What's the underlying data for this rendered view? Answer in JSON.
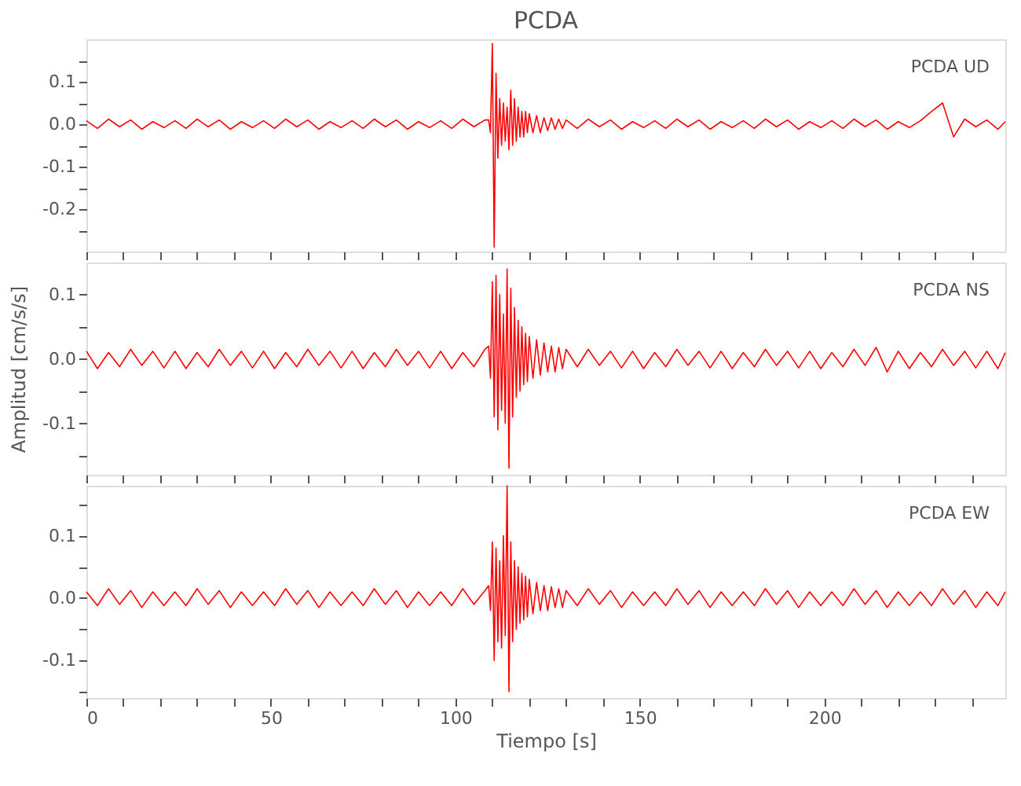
{
  "chart_data": [
    {
      "type": "line",
      "title": "PCDA",
      "annotations": [
        "PCDA   UD"
      ],
      "tick_labels": "y",
      "grid": false,
      "xlim": [
        0,
        249
      ],
      "xticks": [
        0,
        {
          "value": 10,
          "label": null
        },
        {
          "value": 20,
          "label": null
        },
        {
          "value": 30,
          "label": null
        },
        {
          "value": 40,
          "label": null
        },
        50,
        {
          "value": 60,
          "label": null
        },
        {
          "value": 70,
          "label": null
        },
        {
          "value": 80,
          "label": null
        },
        {
          "value": 90,
          "label": null
        },
        100,
        {
          "value": 110,
          "label": null
        },
        {
          "value": 120,
          "label": null
        },
        {
          "value": 130,
          "label": null
        },
        {
          "value": 140,
          "label": null
        },
        150,
        {
          "value": 160,
          "label": null
        },
        {
          "value": 170,
          "label": null
        },
        {
          "value": 180,
          "label": null
        },
        {
          "value": 190,
          "label": null
        },
        200,
        {
          "value": 210,
          "label": null
        },
        {
          "value": 220,
          "label": null
        },
        {
          "value": 230,
          "label": null
        },
        {
          "value": 240,
          "label": null
        }
      ],
      "ylim": [
        -0.3,
        0.2
      ],
      "yticks": [
        {
          "value": -0.25,
          "label": null
        },
        -0.2,
        {
          "value": -0.15,
          "label": null
        },
        -0.1,
        {
          "value": -0.05,
          "label": null
        },
        {
          "value": 0,
          "label": "0.0"
        },
        {
          "value": 0.05,
          "label": null
        },
        0.1,
        {
          "value": 0.15,
          "label": null
        }
      ],
      "x": [
        0,
        3,
        6,
        9,
        12,
        15,
        18,
        21,
        24,
        27,
        30,
        33,
        36,
        39,
        42,
        45,
        48,
        51,
        54,
        57,
        60,
        63,
        66,
        69,
        72,
        75,
        78,
        81,
        84,
        87,
        90,
        93,
        96,
        99,
        102,
        105,
        108,
        109,
        109.5,
        110,
        110.5,
        111,
        111.5,
        112,
        112.5,
        113,
        113.5,
        114,
        114.5,
        115,
        115.5,
        116,
        116.5,
        117,
        117.5,
        118,
        118.5,
        119,
        119.5,
        120,
        121,
        122,
        123,
        124,
        125,
        126,
        127,
        128,
        129,
        130,
        133,
        136,
        139,
        142,
        145,
        148,
        151,
        154,
        157,
        160,
        163,
        166,
        169,
        172,
        175,
        178,
        181,
        184,
        187,
        190,
        193,
        196,
        199,
        202,
        205,
        208,
        211,
        214,
        217,
        220,
        223,
        226,
        229,
        232,
        235,
        238,
        241,
        244,
        247,
        249
      ],
      "series": [
        {
          "color": "#ff0000",
          "values": [
            0.008,
            -0.01,
            0.012,
            -0.006,
            0.01,
            -0.012,
            0.006,
            -0.008,
            0.008,
            -0.01,
            0.012,
            -0.006,
            0.01,
            -0.012,
            0.006,
            -0.008,
            0.008,
            -0.01,
            0.012,
            -0.006,
            0.01,
            -0.012,
            0.006,
            -0.008,
            0.008,
            -0.01,
            0.012,
            -0.006,
            0.01,
            -0.012,
            0.006,
            -0.008,
            0.008,
            -0.01,
            0.012,
            -0.006,
            0.01,
            0.01,
            -0.02,
            0.19,
            -0.29,
            0.12,
            -0.08,
            0.06,
            -0.05,
            0.05,
            -0.04,
            0.04,
            -0.06,
            0.08,
            -0.05,
            0.06,
            -0.04,
            0.04,
            -0.03,
            0.03,
            -0.03,
            0.03,
            -0.02,
            0.025,
            -0.02,
            0.02,
            -0.02,
            0.015,
            -0.015,
            0.015,
            -0.012,
            0.012,
            -0.01,
            0.01,
            -0.01,
            0.012,
            -0.006,
            0.01,
            -0.012,
            0.006,
            -0.008,
            0.008,
            -0.01,
            0.012,
            -0.006,
            0.01,
            -0.012,
            0.006,
            -0.008,
            0.008,
            -0.01,
            0.012,
            -0.006,
            0.01,
            -0.012,
            0.006,
            -0.008,
            0.008,
            -0.01,
            0.012,
            -0.006,
            0.01,
            -0.012,
            0.006,
            -0.008,
            0.008,
            0.03,
            0.05,
            -0.03,
            0.012,
            -0.006,
            0.01,
            -0.012,
            0.006
          ]
        }
      ]
    },
    {
      "type": "line",
      "annotations": [
        "PCDA   NS"
      ],
      "ylabel": "Amplitud [cm/s/s]",
      "tick_labels": "y",
      "grid": false,
      "xlim": [
        0,
        249
      ],
      "xticks": [
        0,
        {
          "value": 10,
          "label": null
        },
        {
          "value": 20,
          "label": null
        },
        {
          "value": 30,
          "label": null
        },
        {
          "value": 40,
          "label": null
        },
        50,
        {
          "value": 60,
          "label": null
        },
        {
          "value": 70,
          "label": null
        },
        {
          "value": 80,
          "label": null
        },
        {
          "value": 90,
          "label": null
        },
        100,
        {
          "value": 110,
          "label": null
        },
        {
          "value": 120,
          "label": null
        },
        {
          "value": 130,
          "label": null
        },
        {
          "value": 140,
          "label": null
        },
        150,
        {
          "value": 160,
          "label": null
        },
        {
          "value": 170,
          "label": null
        },
        {
          "value": 180,
          "label": null
        },
        {
          "value": 190,
          "label": null
        },
        200,
        {
          "value": 210,
          "label": null
        },
        {
          "value": 220,
          "label": null
        },
        {
          "value": 230,
          "label": null
        },
        {
          "value": 240,
          "label": null
        }
      ],
      "ylim": [
        -0.18,
        0.15
      ],
      "yticks": [
        {
          "value": -0.15,
          "label": null
        },
        -0.1,
        {
          "value": -0.05,
          "label": null
        },
        {
          "value": 0,
          "label": "0.0"
        },
        {
          "value": 0.05,
          "label": null
        },
        0.1
      ],
      "x": [
        0,
        3,
        6,
        9,
        12,
        15,
        18,
        21,
        24,
        27,
        30,
        33,
        36,
        39,
        42,
        45,
        48,
        51,
        54,
        57,
        60,
        63,
        66,
        69,
        72,
        75,
        78,
        81,
        84,
        87,
        90,
        93,
        96,
        99,
        102,
        105,
        108,
        109,
        109.5,
        110,
        110.5,
        111,
        111.5,
        112,
        112.5,
        113,
        113.5,
        114,
        114.5,
        115,
        115.5,
        116,
        116.5,
        117,
        117.5,
        118,
        118.5,
        119,
        119.5,
        120,
        121,
        122,
        123,
        124,
        125,
        126,
        127,
        128,
        129,
        130,
        133,
        136,
        139,
        142,
        145,
        148,
        151,
        154,
        157,
        160,
        163,
        166,
        169,
        172,
        175,
        178,
        181,
        184,
        187,
        190,
        193,
        196,
        199,
        202,
        205,
        208,
        211,
        214,
        217,
        220,
        223,
        226,
        229,
        232,
        235,
        238,
        241,
        244,
        247,
        249
      ],
      "series": [
        {
          "color": "#ff0000",
          "values": [
            0.012,
            -0.015,
            0.01,
            -0.012,
            0.015,
            -0.01,
            0.012,
            -0.014,
            0.012,
            -0.015,
            0.01,
            -0.012,
            0.015,
            -0.01,
            0.012,
            -0.014,
            0.012,
            -0.015,
            0.01,
            -0.012,
            0.015,
            -0.01,
            0.012,
            -0.014,
            0.012,
            -0.015,
            0.01,
            -0.012,
            0.015,
            -0.01,
            0.012,
            -0.014,
            0.012,
            -0.015,
            0.01,
            -0.012,
            0.015,
            0.02,
            -0.03,
            0.12,
            -0.09,
            0.13,
            -0.11,
            0.1,
            -0.08,
            0.07,
            -0.1,
            0.14,
            -0.17,
            0.11,
            -0.09,
            0.08,
            -0.06,
            0.06,
            -0.05,
            0.05,
            -0.04,
            0.04,
            -0.035,
            0.035,
            -0.03,
            0.03,
            -0.025,
            0.025,
            -0.02,
            0.02,
            -0.02,
            0.018,
            -0.015,
            0.015,
            -0.012,
            0.015,
            -0.01,
            0.012,
            -0.014,
            0.012,
            -0.015,
            0.01,
            -0.012,
            0.015,
            -0.01,
            0.012,
            -0.014,
            0.012,
            -0.015,
            0.01,
            -0.012,
            0.015,
            -0.01,
            0.012,
            -0.014,
            0.012,
            -0.015,
            0.01,
            -0.012,
            0.015,
            -0.01,
            0.018,
            -0.02,
            0.012,
            -0.015,
            0.01,
            -0.012,
            0.015,
            -0.01,
            0.012,
            -0.014,
            0.012,
            -0.015,
            0.01
          ]
        }
      ]
    },
    {
      "type": "line",
      "annotations": [
        "PCDA   EW"
      ],
      "xlabel": "Tiempo [s]",
      "grid": false,
      "xlim": [
        0,
        249
      ],
      "xticks": [
        0,
        {
          "value": 10,
          "label": null
        },
        {
          "value": 20,
          "label": null
        },
        {
          "value": 30,
          "label": null
        },
        {
          "value": 40,
          "label": null
        },
        50,
        {
          "value": 60,
          "label": null
        },
        {
          "value": 70,
          "label": null
        },
        {
          "value": 80,
          "label": null
        },
        {
          "value": 90,
          "label": null
        },
        100,
        {
          "value": 110,
          "label": null
        },
        {
          "value": 120,
          "label": null
        },
        {
          "value": 130,
          "label": null
        },
        {
          "value": 140,
          "label": null
        },
        150,
        {
          "value": 160,
          "label": null
        },
        {
          "value": 170,
          "label": null
        },
        {
          "value": 180,
          "label": null
        },
        {
          "value": 190,
          "label": null
        },
        200,
        {
          "value": 210,
          "label": null
        },
        {
          "value": 220,
          "label": null
        },
        {
          "value": 230,
          "label": null
        },
        {
          "value": 240,
          "label": null
        }
      ],
      "ylim": [
        -0.16,
        0.18
      ],
      "yticks": [
        {
          "value": -0.15,
          "label": null
        },
        -0.1,
        {
          "value": -0.05,
          "label": null
        },
        {
          "value": 0,
          "label": "0.0"
        },
        {
          "value": 0.05,
          "label": null
        },
        0.1,
        {
          "value": 0.15,
          "label": null
        }
      ],
      "x": [
        0,
        3,
        6,
        9,
        12,
        15,
        18,
        21,
        24,
        27,
        30,
        33,
        36,
        39,
        42,
        45,
        48,
        51,
        54,
        57,
        60,
        63,
        66,
        69,
        72,
        75,
        78,
        81,
        84,
        87,
        90,
        93,
        96,
        99,
        102,
        105,
        108,
        109,
        109.5,
        110,
        110.5,
        111,
        111.5,
        112,
        112.5,
        113,
        113.5,
        114,
        114.5,
        115,
        115.5,
        116,
        116.5,
        117,
        117.5,
        118,
        118.5,
        119,
        119.5,
        120,
        121,
        122,
        123,
        124,
        125,
        126,
        127,
        128,
        129,
        130,
        133,
        136,
        139,
        142,
        145,
        148,
        151,
        154,
        157,
        160,
        163,
        166,
        169,
        172,
        175,
        178,
        181,
        184,
        187,
        190,
        193,
        196,
        199,
        202,
        205,
        208,
        211,
        214,
        217,
        220,
        223,
        226,
        229,
        232,
        235,
        238,
        241,
        244,
        247,
        249
      ],
      "series": [
        {
          "color": "#ff0000",
          "values": [
            0.01,
            -0.012,
            0.015,
            -0.01,
            0.012,
            -0.015,
            0.01,
            -0.012,
            0.01,
            -0.012,
            0.015,
            -0.01,
            0.012,
            -0.015,
            0.01,
            -0.012,
            0.01,
            -0.012,
            0.015,
            -0.01,
            0.012,
            -0.015,
            0.01,
            -0.012,
            0.01,
            -0.012,
            0.015,
            -0.01,
            0.012,
            -0.015,
            0.01,
            -0.012,
            0.01,
            -0.012,
            0.015,
            -0.01,
            0.012,
            0.02,
            -0.02,
            0.09,
            -0.1,
            0.08,
            -0.07,
            0.06,
            -0.08,
            0.1,
            -0.06,
            0.18,
            -0.15,
            0.09,
            -0.07,
            0.06,
            -0.05,
            0.05,
            -0.04,
            0.04,
            -0.035,
            0.035,
            -0.03,
            0.03,
            -0.025,
            0.025,
            -0.02,
            0.02,
            -0.02,
            0.018,
            -0.015,
            0.015,
            -0.015,
            0.012,
            -0.012,
            0.015,
            -0.01,
            0.012,
            -0.015,
            0.01,
            -0.012,
            0.01,
            -0.012,
            0.015,
            -0.01,
            0.012,
            -0.015,
            0.01,
            -0.012,
            0.01,
            -0.012,
            0.015,
            -0.01,
            0.012,
            -0.015,
            0.01,
            -0.012,
            0.01,
            -0.012,
            0.015,
            -0.01,
            0.012,
            -0.015,
            0.01,
            -0.012,
            0.01,
            -0.012,
            0.015,
            -0.01,
            0.012,
            -0.015,
            0.01,
            -0.012,
            0.01
          ]
        }
      ]
    }
  ]
}
